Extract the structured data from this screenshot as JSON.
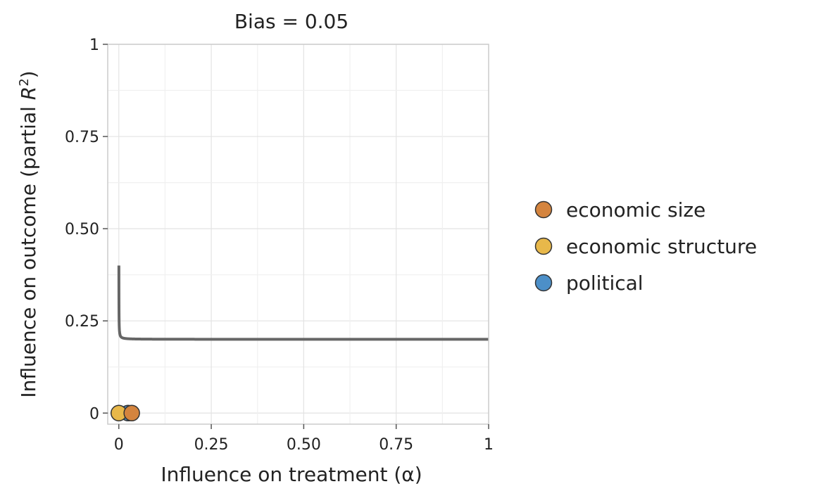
{
  "chart_data": {
    "type": "scatter",
    "title": "Bias = 0.05",
    "xlabel": "Influence on treatment (α)",
    "ylabel_main": "Influence on outcome (partial ",
    "ylabel_var": "R",
    "ylabel_sup": "2",
    "ylabel_close": ")",
    "xlim": [
      -0.03,
      1.0
    ],
    "ylim": [
      -0.03,
      1.0
    ],
    "x_ticks": [
      0,
      0.25,
      0.5,
      0.75,
      1
    ],
    "x_tick_labels": [
      "0",
      "0.25",
      "0.50",
      "0.75",
      "1"
    ],
    "y_ticks": [
      0,
      0.25,
      0.5,
      0.75,
      1
    ],
    "y_tick_labels": [
      "0",
      "0.25",
      "0.50",
      "0.75",
      "1"
    ],
    "grid": true,
    "legend_position": "right",
    "bias": 0.05,
    "contour_asymptote": 0.2,
    "contour_color": "#666666",
    "series": [
      {
        "name": "economic size",
        "color": "#D4843E",
        "points": [
          {
            "x": 0.035,
            "y": 0.0
          }
        ]
      },
      {
        "name": "economic structure",
        "color": "#E8B84A",
        "points": [
          {
            "x": 0.0,
            "y": 0.0
          }
        ]
      },
      {
        "name": "political",
        "color": "#4C8FC8",
        "points": [
          {
            "x": 0.025,
            "y": 0.0
          }
        ]
      }
    ]
  }
}
